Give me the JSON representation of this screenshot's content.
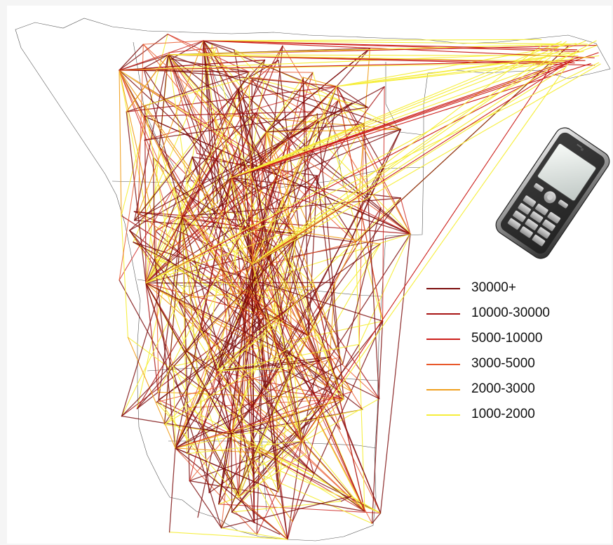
{
  "legend": {
    "items": [
      {
        "label": "30000+",
        "color": "#7a0a0a"
      },
      {
        "label": "10000-30000",
        "color": "#a81414"
      },
      {
        "label": "5000-10000",
        "color": "#cc1f1a"
      },
      {
        "label": "3000-5000",
        "color": "#e8582a"
      },
      {
        "label": "2000-3000",
        "color": "#f0a020"
      },
      {
        "label": "1000-2000",
        "color": "#f6ee3a"
      }
    ]
  },
  "map": {
    "land_color": "#ffffff",
    "border_color": "#555555"
  },
  "illustration": {
    "icon": "mobile-phone-icon"
  }
}
